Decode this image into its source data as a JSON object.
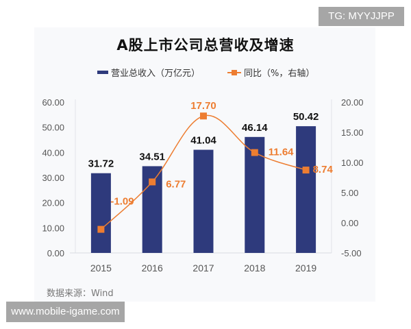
{
  "watermarks": {
    "top_right": "TG: MYYJJPP",
    "bottom_left": "www.mobile-igame.com"
  },
  "legend": {
    "bar_label": "营业总收入（万亿元）",
    "line_label": "同比（%，右轴）"
  },
  "source": "数据来源：Wind",
  "colors": {
    "bar": "#2e3a7c",
    "line": "#ed7d31",
    "background": "#f8f9fb"
  },
  "chart_data": {
    "type": "bar+line",
    "title": "A股上市公司总营收及增速",
    "categories": [
      "2015",
      "2016",
      "2017",
      "2018",
      "2019"
    ],
    "series": [
      {
        "name": "营业总收入（万亿元）",
        "type": "bar",
        "axis": "left",
        "values": [
          31.72,
          34.51,
          41.04,
          46.14,
          50.42
        ],
        "labels": [
          "31.72",
          "34.51",
          "41.04",
          "46.14",
          "50.42"
        ]
      },
      {
        "name": "同比（%，右轴）",
        "type": "line",
        "axis": "right",
        "values": [
          -1.09,
          6.77,
          17.7,
          11.64,
          8.74
        ],
        "labels": [
          "-1.09",
          "6.77",
          "17.70",
          "11.64",
          "8.74"
        ]
      }
    ],
    "left_axis": {
      "ylim": [
        0,
        60
      ],
      "ticks": [
        "60.00",
        "50.00",
        "40.00",
        "30.00",
        "20.00",
        "10.00",
        "0.00"
      ]
    },
    "right_axis": {
      "ylim": [
        -5,
        20
      ],
      "ticks": [
        "20.00",
        "15.00",
        "10.00",
        "5.00",
        "0.00",
        "-5.00"
      ]
    },
    "xlabel": "",
    "ylabel": "",
    "legend_position": "top",
    "grid": false
  }
}
